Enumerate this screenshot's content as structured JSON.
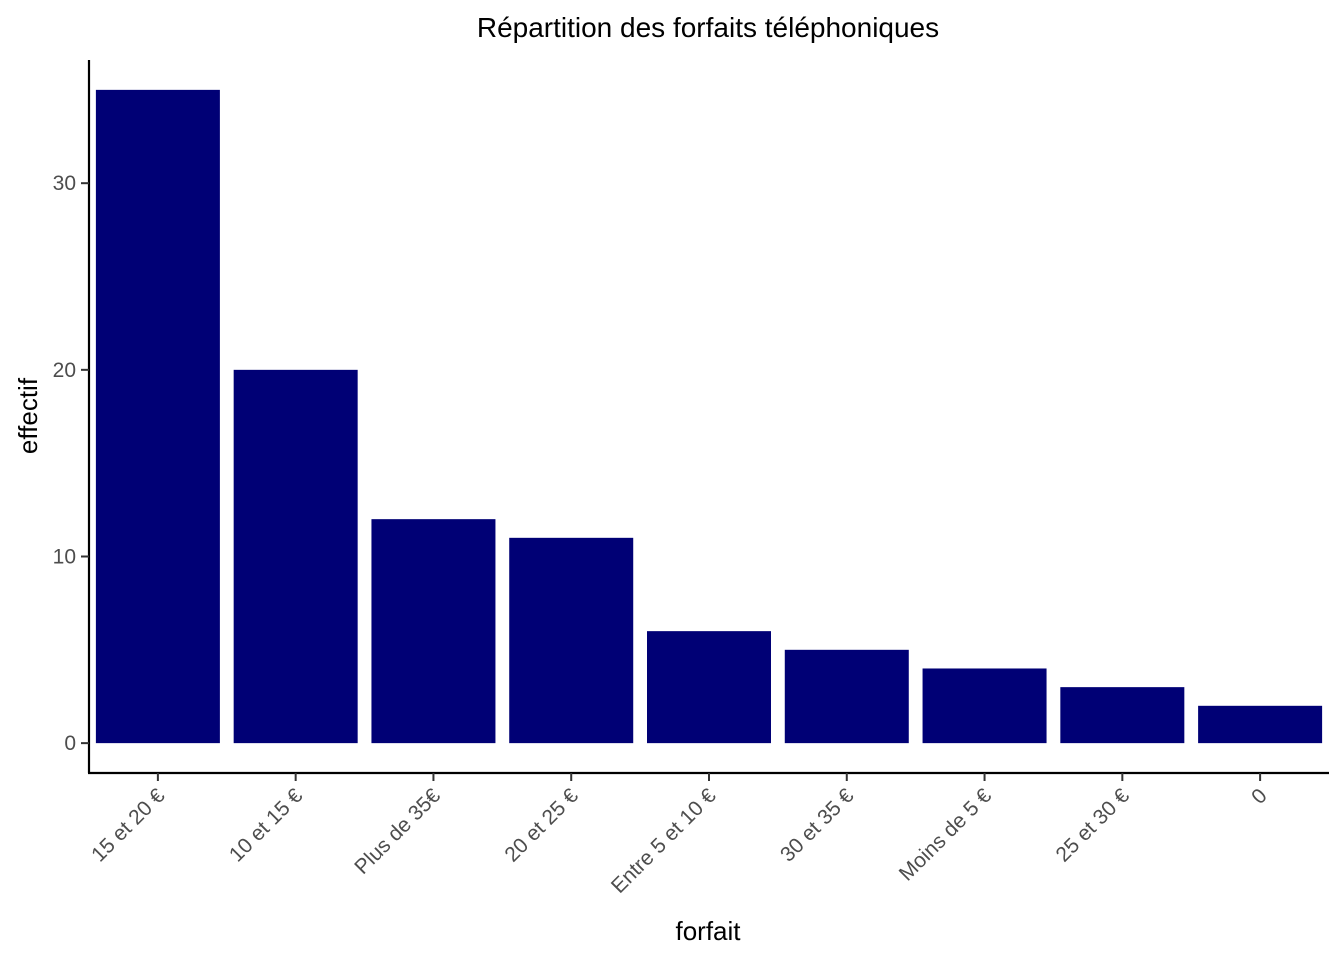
{
  "chart_data": {
    "type": "bar",
    "title": "Répartition des forfaits téléphoniques",
    "xlabel": "forfait",
    "ylabel": "effectif",
    "categories": [
      "15 et 20 €",
      "10 et 15 €",
      "Plus de 35€",
      "20 et 25 €",
      "Entre 5 et 10 €",
      "30 et 35 €",
      "Moins  de 5 €",
      "25 et 30 €",
      "0"
    ],
    "values": [
      35,
      20,
      12,
      11,
      6,
      5,
      4,
      3,
      2
    ],
    "y_ticks": [
      0,
      10,
      20,
      30
    ],
    "ylim": [
      -1.6,
      36.6
    ],
    "bar_color": "#000075",
    "grid": false,
    "legend": "none"
  }
}
